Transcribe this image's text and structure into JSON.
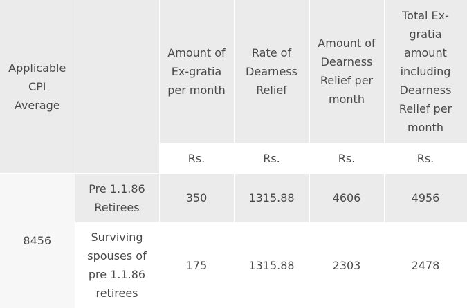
{
  "table": {
    "headers": {
      "cpi": "Applicable CPI Average",
      "category": "",
      "exgratia": "Amount of Ex-gratia per month",
      "dr_rate": "Rate of Dearness Relief",
      "dr_amount": "Amount of Dearness Relief per month",
      "total": "Total Ex-gratia amount including Dearness Relief per month"
    },
    "units": {
      "exgratia": "Rs.",
      "dr_rate": "Rs.",
      "dr_amount": "Rs.",
      "total": "Rs."
    },
    "cpi_value": "8456",
    "rows": [
      {
        "category": "Pre 1.1.86 Retirees",
        "exgratia": "350",
        "dr_rate": "1315.88",
        "dr_amount": "4606",
        "total": "4956"
      },
      {
        "category": "Surviving spouses of pre 1.1.86 retirees",
        "exgratia": "175",
        "dr_rate": "1315.88",
        "dr_amount": "2303",
        "total": "2478"
      }
    ]
  }
}
